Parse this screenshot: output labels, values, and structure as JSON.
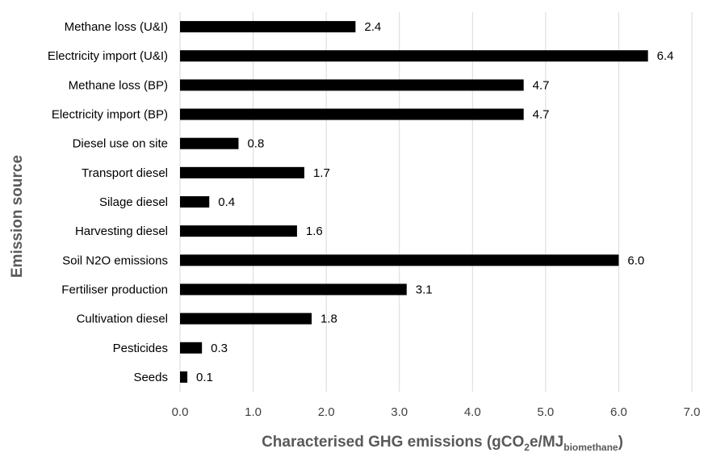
{
  "chart_data": {
    "type": "bar",
    "orientation": "horizontal",
    "categories": [
      "Methane loss (U&I)",
      "Electricity import (U&I)",
      "Methane loss (BP)",
      "Electricity import (BP)",
      "Diesel use on site",
      "Transport diesel",
      "Silage diesel",
      "Harvesting diesel",
      "Soil N2O emissions",
      "Fertiliser production",
      "Cultivation diesel",
      "Pesticides",
      "Seeds"
    ],
    "values": [
      2.4,
      6.4,
      4.7,
      4.7,
      0.8,
      1.7,
      0.4,
      1.6,
      6.0,
      3.1,
      1.8,
      0.3,
      0.1
    ],
    "value_labels": [
      "2.4",
      "6.4",
      "4.7",
      "4.7",
      "0.8",
      "1.7",
      "0.4",
      "1.6",
      "6.0",
      "3.1",
      "1.8",
      "0.3",
      "0.1"
    ],
    "xlim": [
      0,
      7
    ],
    "xticks": [
      "0.0",
      "1.0",
      "2.0",
      "3.0",
      "4.0",
      "5.0",
      "6.0",
      "7.0"
    ],
    "xlabel": {
      "main": "Characterised GHG emissions (gCO",
      "sub1": "2",
      "mid": "e/MJ",
      "sub2": "biomethane",
      "end": ")"
    },
    "ylabel": "Emission source",
    "grid": "vertical",
    "bar_color": "#000000",
    "grid_color": "#d9d9d9"
  }
}
